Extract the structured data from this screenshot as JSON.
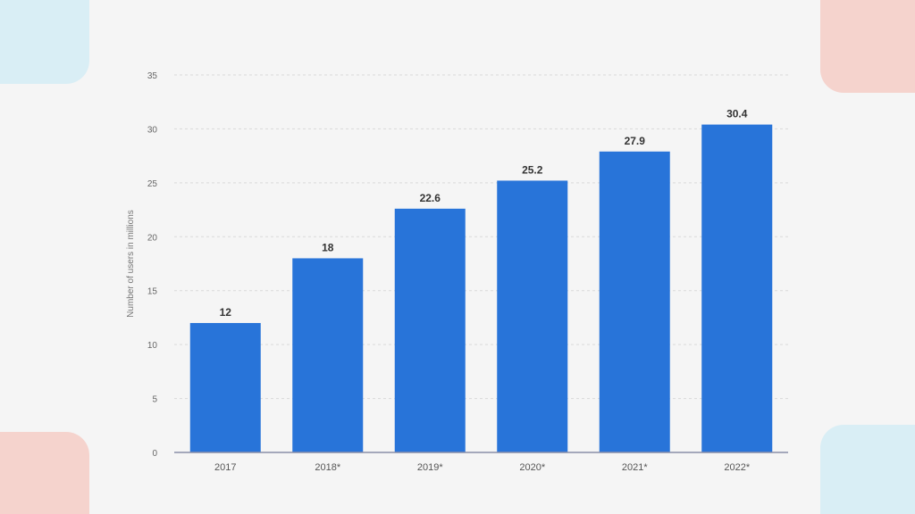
{
  "chart_data": {
    "type": "bar",
    "categories": [
      "2017",
      "2018*",
      "2019*",
      "2020*",
      "2021*",
      "2022*"
    ],
    "values": [
      12,
      18,
      22.6,
      25.2,
      27.9,
      30.4
    ],
    "data_labels": [
      "12",
      "18",
      "22.6",
      "25.2",
      "27.9",
      "30.4"
    ],
    "title": "",
    "xlabel": "",
    "ylabel": "Number of users in millions",
    "ylim": [
      0,
      35
    ],
    "yticks": [
      0,
      5,
      10,
      15,
      20,
      25,
      30,
      35
    ],
    "grid": true,
    "bar_color": "#2874d9"
  },
  "colors": {
    "background": "#f5f5f5",
    "corner_blue": "#d9eef5",
    "corner_pink": "#f5d3cd"
  }
}
